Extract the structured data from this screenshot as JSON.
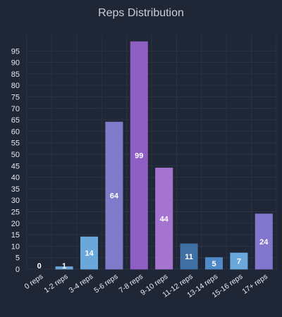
{
  "chart_data": {
    "type": "bar",
    "title": "Reps Distribution",
    "xlabel": "",
    "ylabel": "",
    "categories": [
      "0 reps",
      "1-2 reps",
      "3-4 reps",
      "5-6 reps",
      "7-8 reps",
      "9-10 reps",
      "11-12 reps",
      "13-14 reps",
      "15-16 reps",
      "17+ reps"
    ],
    "values": [
      0,
      1,
      14,
      64,
      99,
      44,
      11,
      5,
      7,
      24
    ],
    "colors": [
      "#6aa8dc",
      "#6aa8dc",
      "#6aa8dc",
      "#7f7ac9",
      "#8e5ec3",
      "#a574cf",
      "#3f6fa3",
      "#4f8ac7",
      "#6aa8dc",
      "#8176cc"
    ],
    "ylim": [
      0,
      100
    ],
    "yticks": [
      0,
      5,
      10,
      15,
      20,
      25,
      30,
      35,
      40,
      45,
      50,
      55,
      60,
      65,
      70,
      75,
      80,
      85,
      90,
      95
    ],
    "grid": true,
    "data_labels": true
  },
  "colors": {
    "background": "#1f2635",
    "grid": "#2b3344",
    "text": "#e8ebf2",
    "title": "#c9cfdb"
  }
}
